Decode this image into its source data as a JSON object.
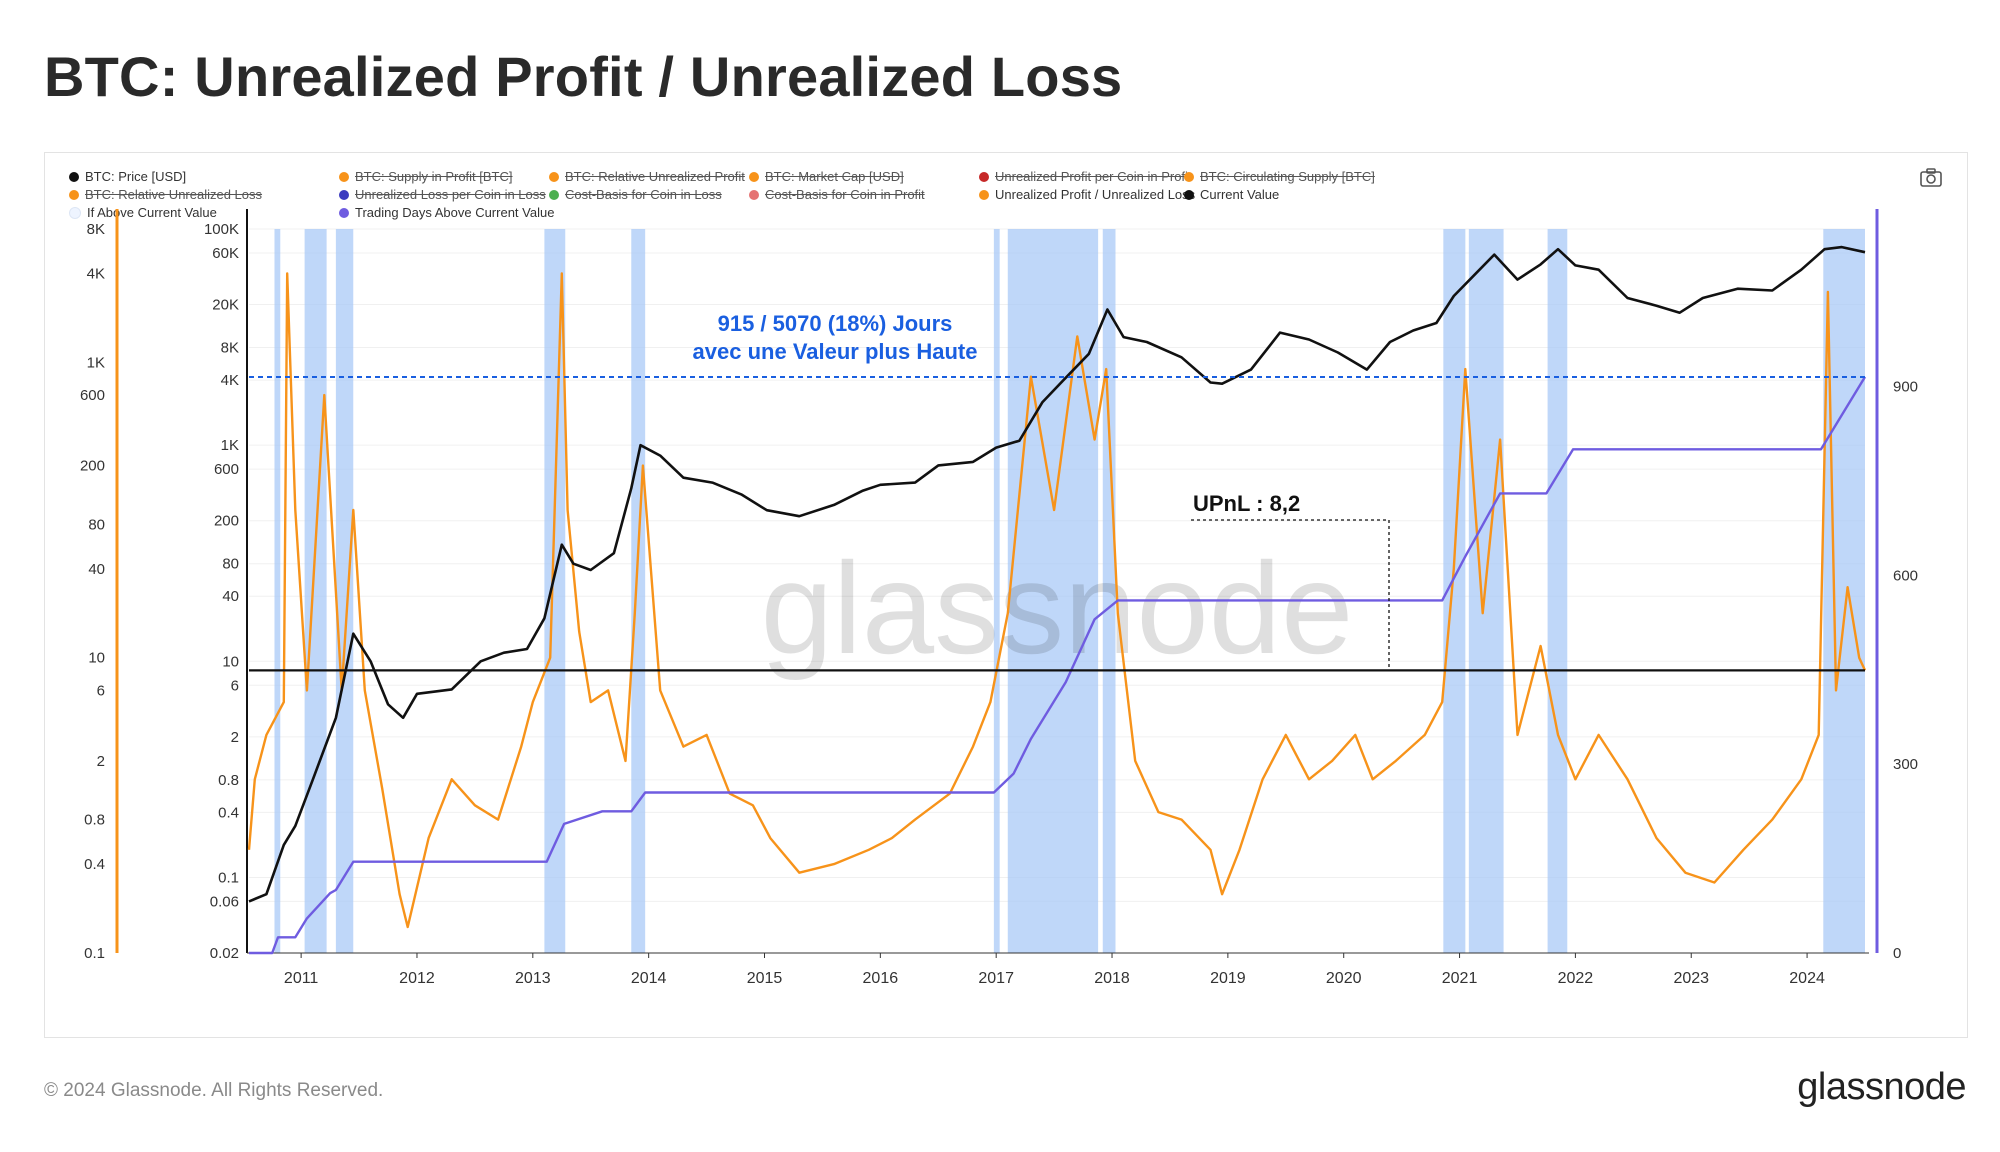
{
  "title": "BTC: Unrealized Profit / Unrealized Loss",
  "footer": "© 2024 Glassnode. All Rights Reserved.",
  "brand": "glassnode",
  "watermark": "glassnode",
  "legend": [
    {
      "label": "BTC: Price [USD]",
      "color": "#111111",
      "off": false
    },
    {
      "label": "BTC: Supply in Profit [BTC]",
      "color": "#f7931a",
      "off": true
    },
    {
      "label": "BTC: Relative Unrealized Profit",
      "color": "#f7931a",
      "off": true
    },
    {
      "label": "BTC: Market Cap [USD]",
      "color": "#f7931a",
      "off": true
    },
    {
      "label": "Unrealized Profit per Coin in Profit",
      "color": "#c62828",
      "off": true
    },
    {
      "label": "BTC: Circulating Supply [BTC]",
      "color": "#f7931a",
      "off": true
    },
    {
      "label": "BTC: Relative Unrealized Loss",
      "color": "#f7931a",
      "off": true
    },
    {
      "label": "Unrealized Loss per Coin in Loss",
      "color": "#3b3bbf",
      "off": true
    },
    {
      "label": "Cost-Basis for Coin in Loss",
      "color": "#4caf50",
      "off": true
    },
    {
      "label": "Cost-Basis for Coin in Profit",
      "color": "#e57373",
      "off": true
    },
    {
      "label": "Unrealized Profit / Unrealized Loss",
      "color": "#f7931a",
      "off": false
    },
    {
      "label": "Current Value",
      "color": "#111111",
      "off": false
    },
    {
      "label": "If Above Current Value",
      "color": "#eef4ff",
      "off": false
    },
    {
      "label": "Trading Days Above Current Value",
      "color": "#6f5ce0",
      "off": false
    }
  ],
  "annotation": {
    "line1": "915 / 5070 (18%) Jours",
    "line2": "avec une Valeur plus Haute",
    "upnl": "UPnL : 8,2"
  },
  "colors": {
    "price": "#111111",
    "ratio": "#f7931a",
    "current": "#111111",
    "days": "#6f5ce0",
    "highlight": "#a9c9f7",
    "annotation": "#1a5fe0",
    "axis_left": "#f7931a",
    "axis_right": "#6f5ce0"
  },
  "chart_data": {
    "type": "line",
    "x_ticks": [
      "2011",
      "2012",
      "2013",
      "2014",
      "2015",
      "2016",
      "2017",
      "2018",
      "2019",
      "2020",
      "2021",
      "2022",
      "2023",
      "2024"
    ],
    "axis_ratio_ticks": [
      "0.1",
      "0.4",
      "0.8",
      "2",
      "6",
      "10",
      "40",
      "80",
      "200",
      "600",
      "1K",
      "4K",
      "8K"
    ],
    "axis_ratio_range": [
      0.1,
      8000
    ],
    "axis_ratio_scale": "log",
    "axis_price_ticks": [
      "0.02",
      "0.06",
      "0.1",
      "0.4",
      "0.8",
      "2",
      "6",
      "10",
      "40",
      "80",
      "200",
      "600",
      "1K",
      "4K",
      "8K",
      "20K",
      "60K",
      "100K"
    ],
    "axis_price_range": [
      0.02,
      100000
    ],
    "axis_price_scale": "log",
    "axis_days_ticks": [
      "0",
      "300",
      "600",
      "900"
    ],
    "axis_days_range": [
      0,
      1150
    ],
    "current_value": 8.2,
    "reference_days": 915,
    "series": [
      {
        "name": "BTC: Price [USD]",
        "axis": "price",
        "x": [
          2010.55,
          2010.7,
          2010.85,
          2010.95,
          2011.1,
          2011.3,
          2011.45,
          2011.6,
          2011.75,
          2011.88,
          2012.0,
          2012.3,
          2012.55,
          2012.75,
          2012.95,
          2013.1,
          2013.25,
          2013.35,
          2013.5,
          2013.7,
          2013.85,
          2013.93,
          2014.1,
          2014.3,
          2014.55,
          2014.8,
          2015.02,
          2015.3,
          2015.6,
          2015.85,
          2016.0,
          2016.3,
          2016.5,
          2016.8,
          2017.0,
          2017.2,
          2017.4,
          2017.6,
          2017.8,
          2017.96,
          2018.1,
          2018.3,
          2018.6,
          2018.85,
          2018.95,
          2019.2,
          2019.45,
          2019.7,
          2019.95,
          2020.2,
          2020.4,
          2020.6,
          2020.8,
          2020.95,
          2021.1,
          2021.3,
          2021.5,
          2021.7,
          2021.85,
          2022.0,
          2022.2,
          2022.45,
          2022.7,
          2022.9,
          2023.1,
          2023.4,
          2023.7,
          2023.95,
          2024.15,
          2024.3,
          2024.5
        ],
        "y": [
          0.06,
          0.07,
          0.2,
          0.3,
          0.8,
          3,
          18,
          10,
          4,
          3,
          5,
          5.5,
          10,
          12,
          13,
          25,
          120,
          80,
          70,
          100,
          400,
          1000,
          800,
          500,
          450,
          350,
          250,
          220,
          280,
          380,
          430,
          450,
          650,
          700,
          950,
          1100,
          2500,
          4200,
          7000,
          18000,
          10000,
          9000,
          6500,
          3800,
          3700,
          5000,
          11000,
          9500,
          7200,
          5000,
          9000,
          11500,
          13500,
          24000,
          35000,
          58000,
          34000,
          47000,
          65000,
          46000,
          42000,
          23000,
          19500,
          16800,
          23000,
          28000,
          27000,
          42000,
          65000,
          68000,
          61000
        ]
      },
      {
        "name": "Unrealized Profit / Unrealized Loss",
        "axis": "ratio",
        "x": [
          2010.55,
          2010.6,
          2010.7,
          2010.85,
          2010.88,
          2010.95,
          2011.05,
          2011.2,
          2011.35,
          2011.45,
          2011.55,
          2011.7,
          2011.85,
          2011.92,
          2012.1,
          2012.3,
          2012.5,
          2012.7,
          2012.9,
          2013.0,
          2013.15,
          2013.25,
          2013.3,
          2013.4,
          2013.5,
          2013.65,
          2013.8,
          2013.88,
          2013.95,
          2014.1,
          2014.3,
          2014.5,
          2014.7,
          2014.9,
          2015.05,
          2015.3,
          2015.6,
          2015.9,
          2016.1,
          2016.3,
          2016.6,
          2016.8,
          2016.95,
          2017.1,
          2017.3,
          2017.5,
          2017.7,
          2017.85,
          2017.95,
          2018.05,
          2018.2,
          2018.4,
          2018.6,
          2018.85,
          2018.95,
          2019.1,
          2019.3,
          2019.5,
          2019.7,
          2019.9,
          2020.1,
          2020.25,
          2020.45,
          2020.7,
          2020.85,
          2020.95,
          2021.05,
          2021.2,
          2021.35,
          2021.5,
          2021.7,
          2021.85,
          2022.0,
          2022.2,
          2022.45,
          2022.7,
          2022.95,
          2023.2,
          2023.45,
          2023.7,
          2023.95,
          2024.1,
          2024.18,
          2024.25,
          2024.35,
          2024.45,
          2024.5
        ],
        "y": [
          0.5,
          1.5,
          3,
          5,
          4000,
          100,
          6,
          600,
          6,
          100,
          6,
          1.3,
          0.25,
          0.15,
          0.6,
          1.5,
          1.0,
          0.8,
          2.5,
          5,
          10,
          4000,
          100,
          15,
          5,
          6,
          2,
          20,
          200,
          6,
          2.5,
          3,
          1.2,
          1.0,
          0.6,
          0.35,
          0.4,
          0.5,
          0.6,
          0.8,
          1.2,
          2.5,
          5,
          20,
          800,
          100,
          1500,
          300,
          900,
          20,
          2,
          0.9,
          0.8,
          0.5,
          0.25,
          0.5,
          1.5,
          3,
          1.5,
          2,
          3,
          1.5,
          2,
          3,
          5,
          40,
          900,
          20,
          300,
          3,
          12,
          3,
          1.5,
          3,
          1.5,
          0.6,
          0.35,
          0.3,
          0.5,
          0.8,
          1.5,
          3,
          3000,
          6,
          30,
          10,
          8.2
        ]
      },
      {
        "name": "Trading Days Above Current Value",
        "axis": "days",
        "x": [
          2010.55,
          2010.75,
          2010.8,
          2010.95,
          2011.05,
          2011.25,
          2011.3,
          2011.45,
          2012.0,
          2012.5,
          2013.0,
          2013.12,
          2013.27,
          2013.6,
          2013.85,
          2013.97,
          2014.5,
          2015.5,
          2016.5,
          2016.98,
          2017.15,
          2017.3,
          2017.6,
          2017.85,
          2018.05,
          2019.0,
          2020.0,
          2020.85,
          2021.05,
          2021.35,
          2021.75,
          2021.98,
          2022.5,
          2023.5,
          2024.12,
          2024.5
        ],
        "y": [
          0,
          0,
          25,
          25,
          55,
          95,
          100,
          145,
          145,
          145,
          145,
          145,
          205,
          225,
          225,
          255,
          255,
          255,
          255,
          255,
          285,
          340,
          430,
          530,
          560,
          560,
          560,
          560,
          630,
          730,
          730,
          800,
          800,
          800,
          800,
          915
        ]
      },
      {
        "name": "Current Value",
        "axis": "ratio",
        "x": [
          2010.55,
          2024.5
        ],
        "y": [
          8.2,
          8.2
        ]
      }
    ],
    "highlight_ranges": [
      [
        2010.77,
        2010.82
      ],
      [
        2011.03,
        2011.22
      ],
      [
        2011.3,
        2011.45
      ],
      [
        2013.1,
        2013.28
      ],
      [
        2013.85,
        2013.97
      ],
      [
        2016.98,
        2017.03
      ],
      [
        2017.1,
        2017.88
      ],
      [
        2017.92,
        2018.03
      ],
      [
        2020.86,
        2021.05
      ],
      [
        2021.08,
        2021.38
      ],
      [
        2021.76,
        2021.93
      ],
      [
        2024.14,
        2024.5
      ]
    ],
    "legend_position": "top-left",
    "grid": true
  }
}
